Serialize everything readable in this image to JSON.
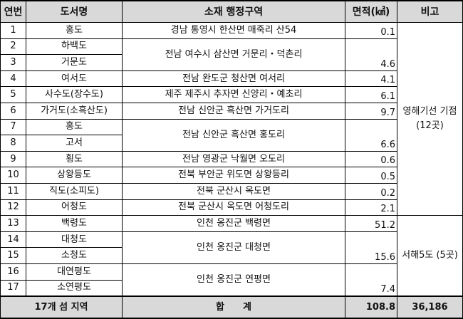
{
  "headers": {
    "no": "연번",
    "name": "도서명",
    "region": "소재 행정구역",
    "area": "면적(㎢)",
    "note": "비고"
  },
  "rows": [
    {
      "no": "1",
      "name": "홍도"
    },
    {
      "no": "2",
      "name": "하백도"
    },
    {
      "no": "3",
      "name": "거문도"
    },
    {
      "no": "4",
      "name": "여서도"
    },
    {
      "no": "5",
      "name": "사수도(장수도)"
    },
    {
      "no": "6",
      "name": "가거도(소흑산도)"
    },
    {
      "no": "7",
      "name": "홍도"
    },
    {
      "no": "8",
      "name": "고서"
    },
    {
      "no": "9",
      "name": "횡도"
    },
    {
      "no": "10",
      "name": "상왕등도"
    },
    {
      "no": "11",
      "name": "직도(소피도)"
    },
    {
      "no": "12",
      "name": "어청도"
    },
    {
      "no": "13",
      "name": "백령도"
    },
    {
      "no": "14",
      "name": "대청도"
    },
    {
      "no": "15",
      "name": "소청도"
    },
    {
      "no": "16",
      "name": "대연평도"
    },
    {
      "no": "17",
      "name": "소연평도"
    }
  ],
  "regions": [
    {
      "region": "경남 통영시 한산면 매죽리 산54",
      "area": "0.1"
    },
    {
      "region": "전남 여수시 삼산면 거문리・덕촌리",
      "area": "4.6"
    },
    {
      "region": "전남 완도군 청산면 여서리",
      "area": "4.1"
    },
    {
      "region": "제주 제주시 추자면 신양리・예초리",
      "area": "6.1"
    },
    {
      "region": "전남 신안군 흑산면 가거도리",
      "area": "9.7"
    },
    {
      "region": "전남 신안군 흑산면 홍도리",
      "area": "6.6"
    },
    {
      "region": "전남 영광군 낙월면 오도리",
      "area": "0.6"
    },
    {
      "region": "전북 부안군 위도면 상왕등리",
      "area": "0.5"
    },
    {
      "region": "전북 군산시 옥도면",
      "area": "0.2"
    },
    {
      "region": "전북 군산시 옥도면 어청도리",
      "area": "2.1"
    },
    {
      "region": "인천 옹진군 백령면",
      "area": "51.2"
    },
    {
      "region": "인천 옹진군 대청면",
      "area": "15.6"
    },
    {
      "region": "인천 옹진군 연평면",
      "area": "7.4"
    }
  ],
  "notes": {
    "group1": "영해기선 기점 (12곳)",
    "group2": "서해5도 (5곳)"
  },
  "total": {
    "label": "17개 섬 지역",
    "sum_label": "합　　계",
    "area": "108.8",
    "note": "36,186"
  }
}
